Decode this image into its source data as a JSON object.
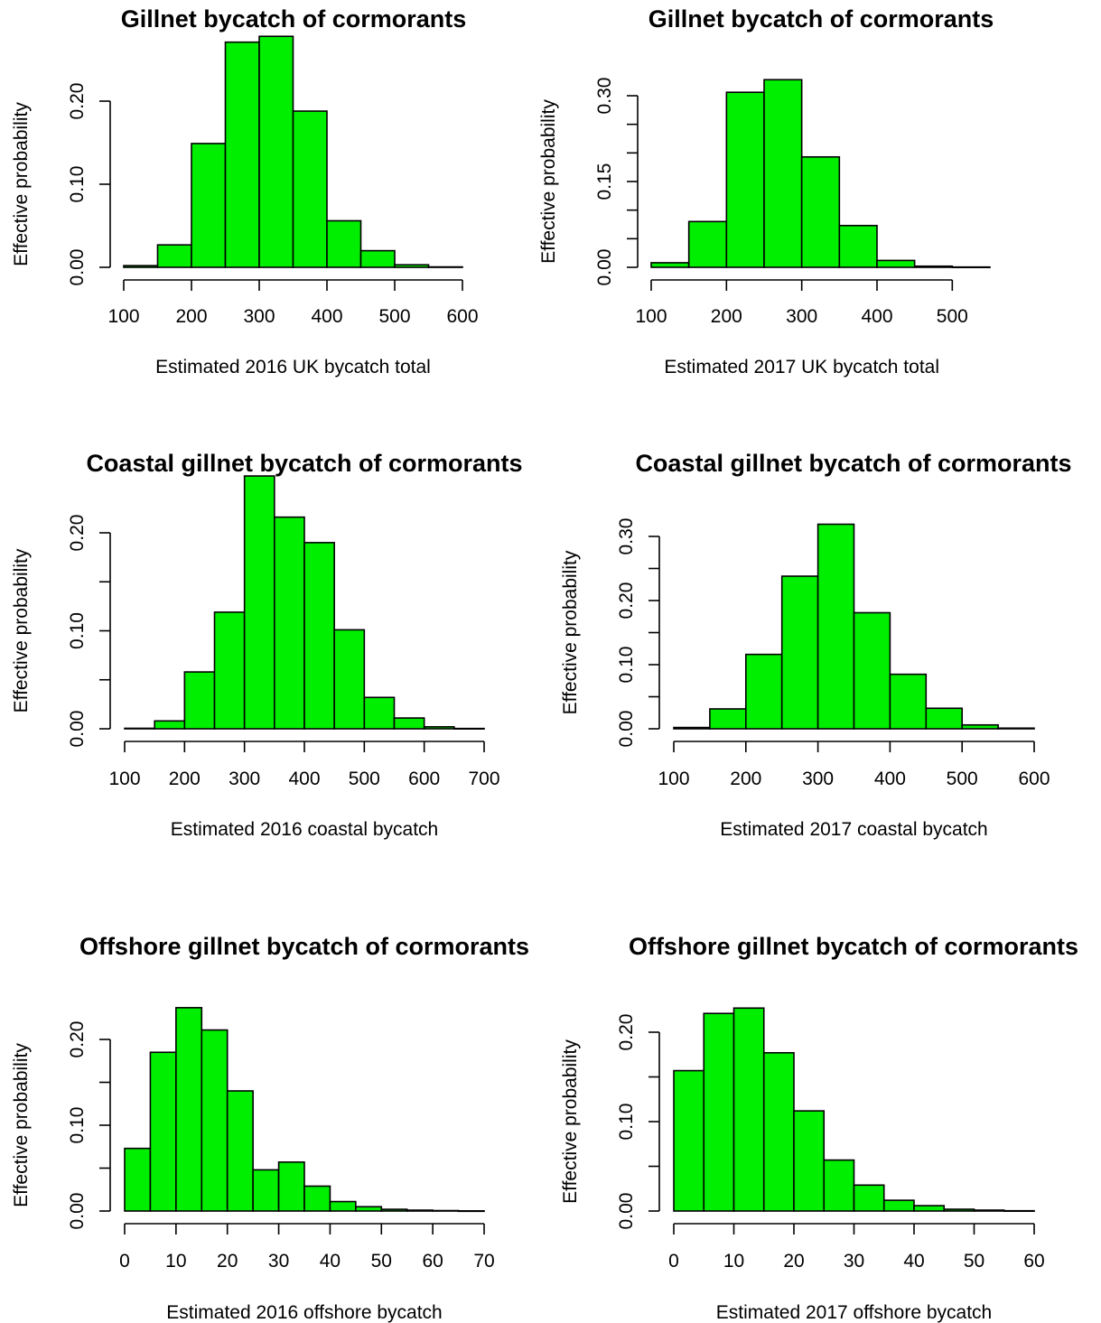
{
  "colors": {
    "bar_fill": "#00ee00",
    "bar_stroke": "#000000"
  },
  "chart_data": [
    {
      "type": "bar",
      "title": "Gillnet bycatch of cormorants",
      "xlabel": "Estimated 2016 UK bycatch total",
      "ylabel": "Effective probability",
      "bin_edges": [
        100,
        150,
        200,
        250,
        300,
        350,
        400,
        450,
        500,
        550,
        600
      ],
      "values": [
        0.002,
        0.027,
        0.149,
        0.271,
        0.278,
        0.188,
        0.056,
        0.02,
        0.003,
        0.0005
      ],
      "xticks": [
        100,
        200,
        300,
        400,
        500,
        600
      ],
      "yticks": [
        0.0,
        0.1,
        0.2
      ],
      "ytick_labels": [
        "0.00",
        "0.10",
        "0.20"
      ],
      "xlim": [
        100,
        600
      ],
      "ylim": [
        0,
        0.25
      ],
      "grid": false
    },
    {
      "type": "bar",
      "title": "Gillnet bycatch of cormorants",
      "xlabel": "Estimated 2017 UK bycatch total",
      "ylabel": "Effective probability",
      "bin_edges": [
        100,
        150,
        200,
        250,
        300,
        350,
        400,
        450,
        500,
        550
      ],
      "values": [
        0.008,
        0.08,
        0.306,
        0.328,
        0.193,
        0.073,
        0.012,
        0.002,
        0.0005
      ],
      "xticks": [
        100,
        200,
        300,
        400,
        500
      ],
      "yticks": [
        0.0,
        0.05,
        0.1,
        0.15,
        0.2,
        0.25,
        0.3
      ],
      "ytick_labels": [
        "0.00",
        "",
        "",
        "0.15",
        "",
        "",
        "0.30"
      ],
      "xlim": [
        100,
        550
      ],
      "ylim": [
        0,
        0.3
      ],
      "grid": false
    },
    {
      "type": "bar",
      "title": "Coastal gillnet bycatch of  cormorants",
      "xlabel": "Estimated 2016 coastal bycatch",
      "ylabel": "Effective probability",
      "bin_edges": [
        100,
        150,
        200,
        250,
        300,
        350,
        400,
        450,
        500,
        550,
        600,
        650,
        700
      ],
      "values": [
        0.0005,
        0.008,
        0.058,
        0.119,
        0.258,
        0.216,
        0.19,
        0.101,
        0.032,
        0.011,
        0.002,
        0.0003
      ],
      "xticks": [
        100,
        200,
        300,
        400,
        500,
        600,
        700
      ],
      "yticks": [
        0.0,
        0.05,
        0.1,
        0.15,
        0.2
      ],
      "ytick_labels": [
        "0.00",
        "",
        "0.10",
        "",
        "0.20"
      ],
      "xlim": [
        100,
        700
      ],
      "ylim": [
        0,
        0.25
      ],
      "grid": false
    },
    {
      "type": "bar",
      "title": "Coastal gillnet bycatch of  cormorants",
      "xlabel": "Estimated 2017 coastal bycatch",
      "ylabel": "Effective probability",
      "bin_edges": [
        100,
        150,
        200,
        250,
        300,
        350,
        400,
        450,
        500,
        550,
        600
      ],
      "values": [
        0.002,
        0.031,
        0.116,
        0.238,
        0.319,
        0.181,
        0.085,
        0.032,
        0.006,
        0.001
      ],
      "xticks": [
        100,
        200,
        300,
        400,
        500,
        600
      ],
      "yticks": [
        0.0,
        0.05,
        0.1,
        0.15,
        0.2,
        0.25,
        0.3
      ],
      "ytick_labels": [
        "0.00",
        "",
        "0.10",
        "",
        "0.20",
        "",
        "0.30"
      ],
      "xlim": [
        100,
        600
      ],
      "ylim": [
        0,
        0.3
      ],
      "grid": false
    },
    {
      "type": "bar",
      "title": "Offshore gillnet bycatch of  cormorants",
      "xlabel": "Estimated 2016 offshore bycatch",
      "ylabel": "Effective probability",
      "bin_edges": [
        0,
        5,
        10,
        15,
        20,
        25,
        30,
        35,
        40,
        45,
        50,
        55,
        60,
        65,
        70
      ],
      "values": [
        0.073,
        0.185,
        0.237,
        0.211,
        0.14,
        0.048,
        0.057,
        0.029,
        0.011,
        0.005,
        0.002,
        0.001,
        0.0005,
        0.0002
      ],
      "xticks": [
        0,
        10,
        20,
        30,
        40,
        50,
        60,
        70
      ],
      "yticks": [
        0.0,
        0.05,
        0.1,
        0.15,
        0.2
      ],
      "ytick_labels": [
        "0.00",
        "",
        "0.10",
        "",
        "0.20"
      ],
      "xlim": [
        0,
        70
      ],
      "ylim": [
        0,
        0.25
      ],
      "grid": false
    },
    {
      "type": "bar",
      "title": "Offshore gillnet bycatch of  cormorants",
      "xlabel": "Estimated 2017 offshore bycatch",
      "ylabel": "Effective probability",
      "bin_edges": [
        0,
        5,
        10,
        15,
        20,
        25,
        30,
        35,
        40,
        45,
        50,
        55,
        60
      ],
      "values": [
        0.157,
        0.221,
        0.227,
        0.177,
        0.112,
        0.057,
        0.029,
        0.012,
        0.006,
        0.002,
        0.001,
        0.0003
      ],
      "xticks": [
        0,
        10,
        20,
        30,
        40,
        50,
        60
      ],
      "yticks": [
        0.0,
        0.05,
        0.1,
        0.15,
        0.2
      ],
      "ytick_labels": [
        "0.00",
        "",
        "0.10",
        "",
        "0.20"
      ],
      "xlim": [
        0,
        60
      ],
      "ylim": [
        0,
        0.25
      ],
      "grid": false
    }
  ]
}
